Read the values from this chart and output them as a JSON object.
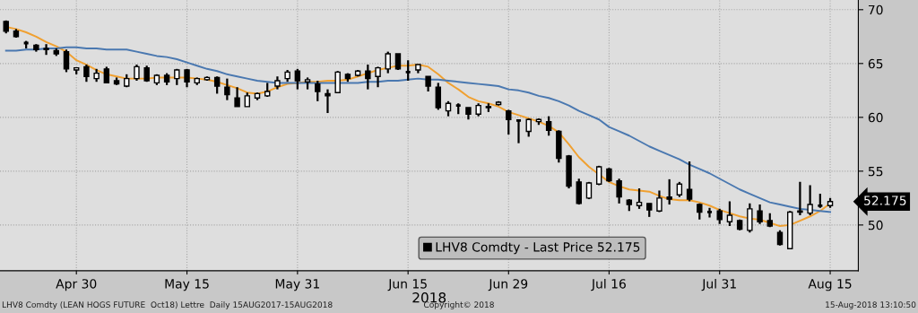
{
  "chart_data": {
    "type": "candlestick",
    "categories": [
      null,
      null,
      null,
      null,
      null,
      null,
      null,
      "Apr 30",
      null,
      null,
      null,
      null,
      null,
      null,
      null,
      null,
      null,
      null,
      "May 15",
      null,
      null,
      null,
      null,
      null,
      null,
      null,
      null,
      null,
      null,
      "May 31",
      null,
      null,
      null,
      null,
      null,
      null,
      null,
      null,
      null,
      null,
      "Jun 15",
      null,
      null,
      null,
      null,
      null,
      null,
      null,
      null,
      null,
      "Jun 29",
      null,
      null,
      null,
      null,
      null,
      null,
      null,
      null,
      null,
      "Jul 16",
      null,
      null,
      null,
      null,
      null,
      null,
      null,
      null,
      null,
      null,
      "Jul 31",
      null,
      null,
      null,
      null,
      null,
      null,
      null,
      null,
      null,
      null,
      "Aug 15"
    ],
    "xlabel": "2018",
    "series": [
      {
        "name": "LHV8 Comdty - Last Price 52.175",
        "color": "#000000",
        "ohlc": [
          [
            68.9,
            69.0,
            67.8,
            68.0
          ],
          [
            68.0,
            68.2,
            67.4,
            67.5
          ],
          [
            66.9,
            67.1,
            66.4,
            66.9
          ],
          [
            66.7,
            66.8,
            66.1,
            66.3
          ],
          [
            66.3,
            66.8,
            65.8,
            66.4
          ],
          [
            66.2,
            66.4,
            65.7,
            65.9
          ],
          [
            66.1,
            66.3,
            64.2,
            64.5
          ],
          [
            64.4,
            64.6,
            64.0,
            64.6
          ],
          [
            64.7,
            64.9,
            63.3,
            63.8
          ],
          [
            63.6,
            64.5,
            63.3,
            64.1
          ],
          [
            64.5,
            64.7,
            63.2,
            63.2
          ],
          [
            63.4,
            63.7,
            63.0,
            63.1
          ],
          [
            62.9,
            64.0,
            62.8,
            63.6
          ],
          [
            63.6,
            64.9,
            63.4,
            64.7
          ],
          [
            64.6,
            64.8,
            63.3,
            63.4
          ],
          [
            63.2,
            64.0,
            63.0,
            63.9
          ],
          [
            63.9,
            64.1,
            63.0,
            63.3
          ],
          [
            63.6,
            64.5,
            63.0,
            64.4
          ],
          [
            64.4,
            64.5,
            62.8,
            63.3
          ],
          [
            63.2,
            63.7,
            63.0,
            63.6
          ],
          [
            63.5,
            63.8,
            63.4,
            63.7
          ],
          [
            63.7,
            63.8,
            62.2,
            62.9
          ],
          [
            62.8,
            63.6,
            61.6,
            62.1
          ],
          [
            61.8,
            62.8,
            61.0,
            61.0
          ],
          [
            61.0,
            62.3,
            61.0,
            62.0
          ],
          [
            61.8,
            62.3,
            61.6,
            62.2
          ],
          [
            62.0,
            63.2,
            61.9,
            62.4
          ],
          [
            62.9,
            63.8,
            62.6,
            63.4
          ],
          [
            63.6,
            64.4,
            63.3,
            64.2
          ],
          [
            64.3,
            64.5,
            62.6,
            63.4
          ],
          [
            63.3,
            63.7,
            62.6,
            63.5
          ],
          [
            63.1,
            63.4,
            61.5,
            62.4
          ],
          [
            62.2,
            62.6,
            60.4,
            62.0
          ],
          [
            62.3,
            64.3,
            62.3,
            64.2
          ],
          [
            64.0,
            64.1,
            63.3,
            63.6
          ],
          [
            63.9,
            64.4,
            63.8,
            64.3
          ],
          [
            64.3,
            64.9,
            62.6,
            63.6
          ],
          [
            63.8,
            64.7,
            62.8,
            64.6
          ],
          [
            64.5,
            66.1,
            64.1,
            65.9
          ],
          [
            65.9,
            65.9,
            64.4,
            64.5
          ],
          [
            64.2,
            65.3,
            63.4,
            64.2
          ],
          [
            64.4,
            64.9,
            64.1,
            64.9
          ],
          [
            63.8,
            63.8,
            62.4,
            62.9
          ],
          [
            62.8,
            63.2,
            60.7,
            60.9
          ],
          [
            60.6,
            61.5,
            60.1,
            61.3
          ],
          [
            61.1,
            61.3,
            60.3,
            61.1
          ],
          [
            60.9,
            60.9,
            59.8,
            60.3
          ],
          [
            60.3,
            61.3,
            60.1,
            61.1
          ],
          [
            60.9,
            61.3,
            60.5,
            61.0
          ],
          [
            61.2,
            61.5,
            61.1,
            61.4
          ],
          [
            60.6,
            60.7,
            58.4,
            59.8
          ],
          [
            59.7,
            59.8,
            57.6,
            59.7
          ],
          [
            58.7,
            59.9,
            58.2,
            59.8
          ],
          [
            59.6,
            59.9,
            59.3,
            59.8
          ],
          [
            59.6,
            60.1,
            58.3,
            58.8
          ],
          [
            58.7,
            58.8,
            55.8,
            56.2
          ],
          [
            56.4,
            56.5,
            53.4,
            53.6
          ],
          [
            54.0,
            54.3,
            51.9,
            52.0
          ],
          [
            52.5,
            54.0,
            52.4,
            53.9
          ],
          [
            53.8,
            55.5,
            53.7,
            55.4
          ],
          [
            55.2,
            55.3,
            54.0,
            54.1
          ],
          [
            54.1,
            54.3,
            52.0,
            52.6
          ],
          [
            52.3,
            52.4,
            51.3,
            51.9
          ],
          [
            51.8,
            53.4,
            51.5,
            52.1
          ],
          [
            52.0,
            52.0,
            50.75,
            51.4
          ],
          [
            51.3,
            53.2,
            51.2,
            52.5
          ],
          [
            52.6,
            54.25,
            51.9,
            52.4
          ],
          [
            52.8,
            54.0,
            52.6,
            53.8
          ],
          [
            53.3,
            55.9,
            52.2,
            52.4
          ],
          [
            51.9,
            52.0,
            50.5,
            51.2
          ],
          [
            51.2,
            51.6,
            50.7,
            51.2
          ],
          [
            51.3,
            51.5,
            50.1,
            50.5
          ],
          [
            50.3,
            52.2,
            49.9,
            50.9
          ],
          [
            50.4,
            50.5,
            49.5,
            49.6
          ],
          [
            49.5,
            52.0,
            49.3,
            51.5
          ],
          [
            51.3,
            51.9,
            50.1,
            50.3
          ],
          [
            50.4,
            51.1,
            49.8,
            49.9
          ],
          [
            49.3,
            49.5,
            48.1,
            48.2
          ],
          [
            47.8,
            51.3,
            47.75,
            51.2
          ],
          [
            51.3,
            54.0,
            50.9,
            51.2
          ],
          [
            51.1,
            53.7,
            50.9,
            51.9
          ],
          [
            51.8,
            52.9,
            51.6,
            51.8
          ],
          [
            51.8,
            52.5,
            51.6,
            52.175
          ]
        ]
      },
      {
        "type": "line",
        "color": "#f0a030",
        "values": [
          68.4,
          68.2,
          67.9,
          67.5,
          67.0,
          66.6,
          66.1,
          65.3,
          64.9,
          64.4,
          64.0,
          63.8,
          63.6,
          63.6,
          63.6,
          63.7,
          63.7,
          63.7,
          63.7,
          63.6,
          63.5,
          63.3,
          63.0,
          62.7,
          62.3,
          62.2,
          62.4,
          62.8,
          63.1,
          63.2,
          63.3,
          63.3,
          63.4,
          63.4,
          63.5,
          63.8,
          64.1,
          64.4,
          64.6,
          64.8,
          64.8,
          64.9,
          64.7,
          64.0,
          63.2,
          62.6,
          61.9,
          61.5,
          61.3,
          61.0,
          60.5,
          60.2,
          59.9,
          59.6,
          59.2,
          58.6,
          57.5,
          56.3,
          55.4,
          54.7,
          54.0,
          53.6,
          53.3,
          53.2,
          53.1,
          52.7,
          52.4,
          52.3,
          52.3,
          52.1,
          51.8,
          51.4,
          51.1,
          50.8,
          50.6,
          50.5,
          50.2,
          49.9,
          50.0,
          50.4,
          50.8,
          51.3,
          52.0
        ]
      },
      {
        "type": "line",
        "color": "#4a78b0",
        "values": [
          66.2,
          66.2,
          66.3,
          66.3,
          66.4,
          66.4,
          66.5,
          66.5,
          66.4,
          66.4,
          66.3,
          66.3,
          66.3,
          66.1,
          65.9,
          65.7,
          65.6,
          65.4,
          65.1,
          64.8,
          64.5,
          64.3,
          64.0,
          63.8,
          63.6,
          63.4,
          63.3,
          63.2,
          63.2,
          63.2,
          63.2,
          63.2,
          63.2,
          63.2,
          63.2,
          63.2,
          63.3,
          63.3,
          63.4,
          63.4,
          63.5,
          63.6,
          63.5,
          63.5,
          63.4,
          63.3,
          63.2,
          63.1,
          63.0,
          62.9,
          62.6,
          62.5,
          62.3,
          62.0,
          61.8,
          61.5,
          61.1,
          60.6,
          60.2,
          59.8,
          59.1,
          58.7,
          58.3,
          57.8,
          57.3,
          56.9,
          56.5,
          56.1,
          55.6,
          55.2,
          54.8,
          54.3,
          53.8,
          53.3,
          52.9,
          52.5,
          52.1,
          51.9,
          51.7,
          51.5,
          51.4,
          51.3,
          51.2
        ]
      }
    ],
    "ylim": [
      45.75,
      70.9
    ],
    "yticks": [
      50,
      55,
      60,
      65,
      70
    ],
    "grid": true,
    "legend": "bottom",
    "annotations": [
      "52.175",
      "LHV8 Comdty (LEAN HOGS FUTURE  Oct18) Lettre  Daily 15AUG2017-15AUG2018",
      "Copyright© 2018",
      "15-Aug-2018 13:10:50"
    ]
  }
}
